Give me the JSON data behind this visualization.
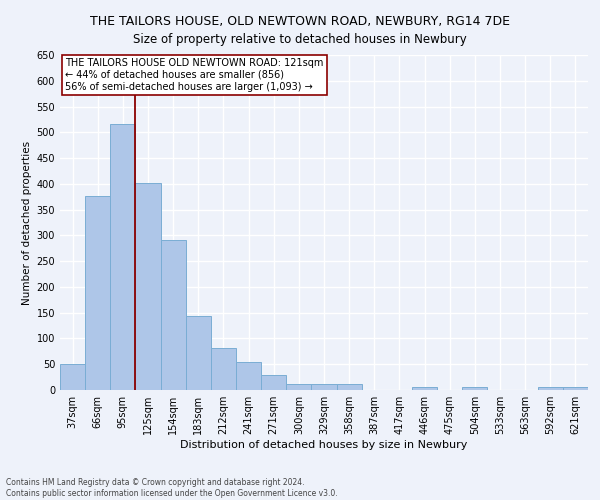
{
  "title": "THE TAILORS HOUSE, OLD NEWTOWN ROAD, NEWBURY, RG14 7DE",
  "subtitle": "Size of property relative to detached houses in Newbury",
  "xlabel": "Distribution of detached houses by size in Newbury",
  "ylabel": "Number of detached properties",
  "categories": [
    "37sqm",
    "66sqm",
    "95sqm",
    "125sqm",
    "154sqm",
    "183sqm",
    "212sqm",
    "241sqm",
    "271sqm",
    "300sqm",
    "329sqm",
    "358sqm",
    "387sqm",
    "417sqm",
    "446sqm",
    "475sqm",
    "504sqm",
    "533sqm",
    "563sqm",
    "592sqm",
    "621sqm"
  ],
  "values": [
    50,
    376,
    517,
    401,
    291,
    143,
    82,
    55,
    30,
    12,
    12,
    11,
    0,
    0,
    5,
    0,
    5,
    0,
    0,
    5,
    5
  ],
  "bar_color": "#aec6e8",
  "bar_edgecolor": "#7aadd4",
  "vline_color": "#8b0000",
  "annotation_text": "THE TAILORS HOUSE OLD NEWTOWN ROAD: 121sqm\n← 44% of detached houses are smaller (856)\n56% of semi-detached houses are larger (1,093) →",
  "annotation_box_color": "#ffffff",
  "annotation_box_edgecolor": "#8b0000",
  "ylim": [
    0,
    650
  ],
  "yticks": [
    0,
    50,
    100,
    150,
    200,
    250,
    300,
    350,
    400,
    450,
    500,
    550,
    600,
    650
  ],
  "footer_line1": "Contains HM Land Registry data © Crown copyright and database right 2024.",
  "footer_line2": "Contains public sector information licensed under the Open Government Licence v3.0.",
  "background_color": "#eef2fa",
  "grid_color": "#ffffff",
  "title_fontsize": 9,
  "subtitle_fontsize": 8.5,
  "ylabel_fontsize": 7.5,
  "xlabel_fontsize": 8,
  "tick_fontsize": 7,
  "annot_fontsize": 7,
  "footer_fontsize": 5.5
}
